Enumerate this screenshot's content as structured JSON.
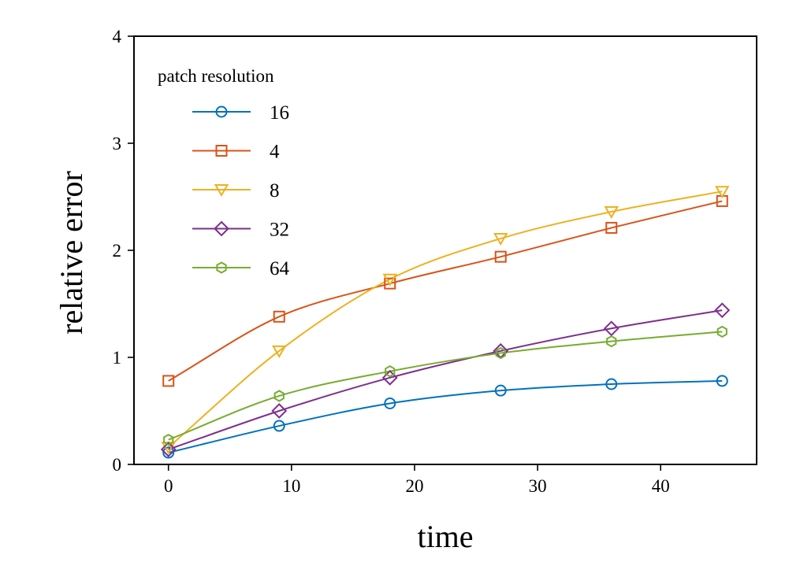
{
  "chart_data": {
    "type": "line",
    "title": "",
    "xlabel": "time",
    "ylabel": "relative error",
    "xlim": [
      -2.8,
      47.8
    ],
    "ylim": [
      0,
      4
    ],
    "xticks": [
      0,
      10,
      20,
      30,
      40
    ],
    "yticks": [
      0,
      1,
      2,
      3,
      4
    ],
    "grid": false,
    "legend": {
      "title": "patch resolution",
      "position": "top-left"
    },
    "x": [
      0,
      9,
      18,
      27,
      36,
      45
    ],
    "series": [
      {
        "name": "16",
        "color": "#0072BD",
        "marker": "circle",
        "values": [
          0.11,
          0.36,
          0.57,
          0.69,
          0.75,
          0.78
        ]
      },
      {
        "name": "4",
        "color": "#D95319",
        "marker": "square",
        "values": [
          0.78,
          1.38,
          1.69,
          1.94,
          2.21,
          2.46
        ]
      },
      {
        "name": "8",
        "color": "#EDB120",
        "marker": "triangle-down",
        "values": [
          0.16,
          1.06,
          1.73,
          2.11,
          2.36,
          2.55
        ]
      },
      {
        "name": "32",
        "color": "#7E2F8E",
        "marker": "diamond",
        "values": [
          0.14,
          0.5,
          0.81,
          1.06,
          1.27,
          1.44
        ]
      },
      {
        "name": "64",
        "color": "#77AC30",
        "marker": "hexagon",
        "values": [
          0.23,
          0.64,
          0.87,
          1.04,
          1.15,
          1.24
        ]
      }
    ]
  }
}
